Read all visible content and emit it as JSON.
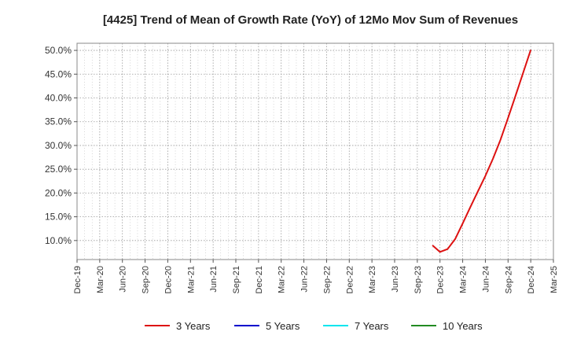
{
  "chart_data": {
    "type": "line",
    "title": "[4425]  Trend of Mean of Growth Rate (YoY) of 12Mo Mov Sum of Revenues",
    "xlabel": "",
    "ylabel": "",
    "x_ticks": [
      "Dec-19",
      "Mar-20",
      "Jun-20",
      "Sep-20",
      "Dec-20",
      "Mar-21",
      "Jun-21",
      "Sep-21",
      "Dec-21",
      "Mar-22",
      "Jun-22",
      "Sep-22",
      "Dec-22",
      "Mar-23",
      "Jun-23",
      "Sep-23",
      "Dec-23",
      "Mar-24",
      "Jun-24",
      "Sep-24",
      "Dec-24",
      "Mar-25"
    ],
    "y_ticks": [
      "10.0%",
      "15.0%",
      "20.0%",
      "25.0%",
      "30.0%",
      "35.0%",
      "40.0%",
      "45.0%",
      "50.0%"
    ],
    "y_tick_values": [
      10,
      15,
      20,
      25,
      30,
      35,
      40,
      45,
      50
    ],
    "ylim": [
      6.0,
      51.5
    ],
    "grid": true,
    "legend_position": "bottom",
    "series": [
      {
        "name": "3 Years",
        "color": "#dd1111",
        "x": [
          "Nov-23",
          "Dec-23",
          "Jan-24",
          "Feb-24",
          "Mar-24",
          "Apr-24",
          "May-24",
          "Jun-24",
          "Jul-24",
          "Aug-24",
          "Sep-24",
          "Oct-24",
          "Nov-24",
          "Dec-24"
        ],
        "values": [
          9.0,
          7.6,
          8.2,
          10.3,
          13.6,
          17.0,
          20.3,
          23.6,
          27.2,
          31.2,
          35.8,
          40.5,
          45.3,
          50.1
        ]
      },
      {
        "name": "5 Years",
        "color": "#0000cc",
        "x": [],
        "values": []
      },
      {
        "name": "7 Years",
        "color": "#00e5ee",
        "x": [],
        "values": []
      },
      {
        "name": "10 Years",
        "color": "#228b22",
        "x": [],
        "values": []
      }
    ]
  }
}
